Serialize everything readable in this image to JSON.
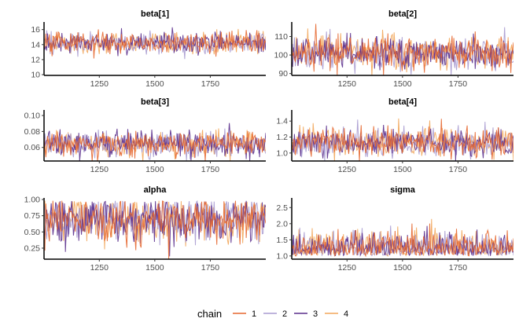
{
  "colors": {
    "chain1": "#e5672f",
    "chain2": "#a99bd0",
    "chain3": "#5a2e8c",
    "chain4": "#f2a65a",
    "axis": "#000000",
    "tick_text": "#4d4d4d"
  },
  "legend": {
    "title": "chain",
    "placement": "bottom",
    "items": [
      "1",
      "2",
      "3",
      "4"
    ]
  },
  "chart_data": [
    {
      "type": "line",
      "title": "beta[1]",
      "xlim": [
        1001,
        2000
      ],
      "ylim": [
        9.9,
        16.8
      ],
      "xticks": [
        1250,
        1500,
        1750
      ],
      "yticks": [
        10,
        12,
        14,
        16
      ],
      "ytick_labels": [
        "10",
        "12",
        "14",
        "16"
      ],
      "series_summary": [
        {
          "name": "1",
          "center": 14.2,
          "spread": 0.7
        },
        {
          "name": "2",
          "center": 14.2,
          "spread": 0.7
        },
        {
          "name": "3",
          "center": 14.2,
          "spread": 0.7
        },
        {
          "name": "4",
          "center": 14.2,
          "spread": 0.7
        }
      ]
    },
    {
      "type": "line",
      "title": "beta[2]",
      "xlim": [
        1001,
        2000
      ],
      "ylim": [
        89,
        117
      ],
      "xticks": [
        1250,
        1500,
        1750
      ],
      "yticks": [
        90,
        100,
        110
      ],
      "ytick_labels": [
        "90",
        "100",
        "110"
      ],
      "series_summary": [
        {
          "name": "1",
          "center": 101,
          "spread": 4.5
        },
        {
          "name": "2",
          "center": 101,
          "spread": 4.5
        },
        {
          "name": "3",
          "center": 101,
          "spread": 4.5
        },
        {
          "name": "4",
          "center": 101,
          "spread": 4.5
        }
      ]
    },
    {
      "type": "line",
      "title": "beta[3]",
      "xlim": [
        1001,
        2000
      ],
      "ylim": [
        0.043,
        0.105
      ],
      "xticks": [
        1250,
        1500,
        1750
      ],
      "yticks": [
        0.06,
        0.08,
        0.1
      ],
      "ytick_labels": [
        "0.06",
        "0.08",
        "0.10"
      ],
      "series_summary": [
        {
          "name": "1",
          "center": 0.064,
          "spread": 0.008
        },
        {
          "name": "2",
          "center": 0.064,
          "spread": 0.008
        },
        {
          "name": "3",
          "center": 0.064,
          "spread": 0.008
        },
        {
          "name": "4",
          "center": 0.064,
          "spread": 0.008
        }
      ]
    },
    {
      "type": "line",
      "title": "beta[4]",
      "xlim": [
        1001,
        2000
      ],
      "ylim": [
        0.9,
        1.52
      ],
      "xticks": [
        1250,
        1500,
        1750
      ],
      "yticks": [
        1.0,
        1.2,
        1.4
      ],
      "ytick_labels": [
        "1.0",
        "1.2",
        "1.4"
      ],
      "series_summary": [
        {
          "name": "1",
          "center": 1.13,
          "spread": 0.09
        },
        {
          "name": "2",
          "center": 1.13,
          "spread": 0.09
        },
        {
          "name": "3",
          "center": 1.13,
          "spread": 0.09
        },
        {
          "name": "4",
          "center": 1.13,
          "spread": 0.09
        }
      ]
    },
    {
      "type": "line",
      "title": "alpha",
      "xlim": [
        1001,
        2000
      ],
      "ylim": [
        0.08,
        1.0
      ],
      "xticks": [
        1250,
        1500,
        1750
      ],
      "yticks": [
        0.25,
        0.5,
        0.75,
        1.0
      ],
      "ytick_labels": [
        "0.25",
        "0.50",
        "0.75",
        "1.00"
      ],
      "series_summary": [
        {
          "name": "1",
          "center": 0.7,
          "spread": 0.18
        },
        {
          "name": "2",
          "center": 0.7,
          "spread": 0.18
        },
        {
          "name": "3",
          "center": 0.7,
          "spread": 0.18
        },
        {
          "name": "4",
          "center": 0.7,
          "spread": 0.18
        }
      ]
    },
    {
      "type": "line",
      "title": "sigma",
      "xlim": [
        1001,
        2000
      ],
      "ylim": [
        0.9,
        2.75
      ],
      "xticks": [
        1250,
        1500,
        1750
      ],
      "yticks": [
        1.0,
        1.5,
        2.0,
        2.5
      ],
      "ytick_labels": [
        "1.0",
        "1.5",
        "2.0",
        "2.5"
      ],
      "series_summary": [
        {
          "name": "1",
          "center": 1.35,
          "spread": 0.25
        },
        {
          "name": "2",
          "center": 1.35,
          "spread": 0.25
        },
        {
          "name": "3",
          "center": 1.35,
          "spread": 0.25
        },
        {
          "name": "4",
          "center": 1.35,
          "spread": 0.25
        }
      ]
    }
  ]
}
